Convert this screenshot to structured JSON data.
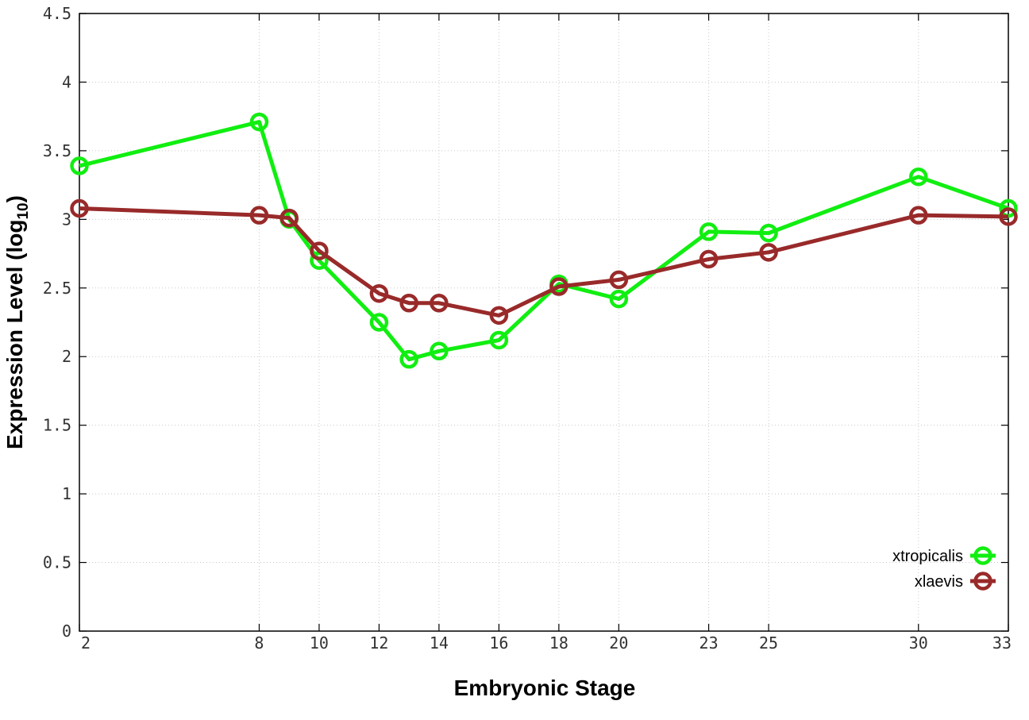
{
  "chart_data": {
    "type": "line",
    "xlabel": "Embryonic Stage",
    "ylabel": "Expression Level (log",
    "ylabel_subscript": "10",
    "ylabel_close": ")",
    "x_ticks": [
      2,
      8,
      10,
      12,
      14,
      16,
      18,
      20,
      23,
      25,
      30,
      33
    ],
    "y_ticks": [
      "0",
      "0.5",
      "1",
      "1.5",
      "2",
      "2.5",
      "3",
      "3.5",
      "4",
      "4.5"
    ],
    "ylim": [
      0,
      4.5
    ],
    "xlim": [
      2,
      33
    ],
    "grid": true,
    "legend_position": "bottom-right",
    "series": [
      {
        "name": "xtropicalis",
        "color": "#11ee11",
        "points": [
          {
            "x": 2,
            "y": 3.39
          },
          {
            "x": 8,
            "y": 3.71
          },
          {
            "x": 9,
            "y": 3.0
          },
          {
            "x": 10,
            "y": 2.7
          },
          {
            "x": 12,
            "y": 2.25
          },
          {
            "x": 13,
            "y": 1.98
          },
          {
            "x": 14,
            "y": 2.04
          },
          {
            "x": 16,
            "y": 2.12
          },
          {
            "x": 18,
            "y": 2.53
          },
          {
            "x": 20,
            "y": 2.42
          },
          {
            "x": 23,
            "y": 2.91
          },
          {
            "x": 25,
            "y": 2.9
          },
          {
            "x": 30,
            "y": 3.31
          },
          {
            "x": 33,
            "y": 3.08
          }
        ]
      },
      {
        "name": "xlaevis",
        "color": "#992a2a",
        "points": [
          {
            "x": 2,
            "y": 3.08
          },
          {
            "x": 8,
            "y": 3.03
          },
          {
            "x": 9,
            "y": 3.01
          },
          {
            "x": 10,
            "y": 2.77
          },
          {
            "x": 12,
            "y": 2.46
          },
          {
            "x": 13,
            "y": 2.39
          },
          {
            "x": 14,
            "y": 2.39
          },
          {
            "x": 16,
            "y": 2.3
          },
          {
            "x": 18,
            "y": 2.51
          },
          {
            "x": 20,
            "y": 2.56
          },
          {
            "x": 23,
            "y": 2.71
          },
          {
            "x": 25,
            "y": 2.76
          },
          {
            "x": 30,
            "y": 3.03
          },
          {
            "x": 33,
            "y": 3.02
          }
        ]
      }
    ]
  }
}
